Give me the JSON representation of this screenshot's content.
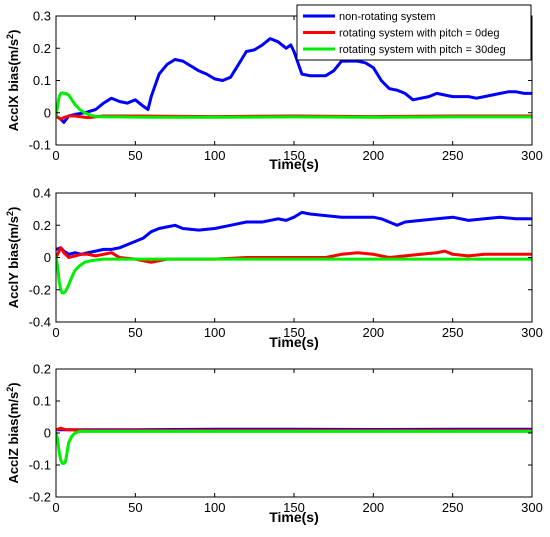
{
  "chart_data": [
    {
      "type": "line",
      "xlabel": "Time(s)",
      "ylabel_main": "AcclX bias(m/s",
      "ylabel_sup": "2",
      "ylabel_tail": ")",
      "xlim": [
        0,
        300
      ],
      "ylim": [
        -0.1,
        0.3
      ],
      "xticks": [
        0,
        50,
        100,
        150,
        200,
        250,
        300
      ],
      "yticks": [
        -0.1,
        0,
        0.1,
        0.2,
        0.3
      ],
      "ytick_labels": [
        "-0.1",
        "0",
        "0.1",
        "0.2",
        "0.3"
      ],
      "grid": false,
      "legend_position": "top-right",
      "series": [
        {
          "name": "non-rotating system",
          "color": "#0000ff",
          "x": [
            0,
            3,
            5,
            8,
            12,
            18,
            25,
            30,
            35,
            40,
            45,
            50,
            55,
            58,
            60,
            65,
            70,
            75,
            80,
            85,
            90,
            95,
            100,
            105,
            110,
            115,
            120,
            125,
            130,
            135,
            140,
            145,
            148,
            150,
            155,
            160,
            165,
            170,
            175,
            180,
            185,
            190,
            195,
            200,
            205,
            210,
            215,
            220,
            225,
            230,
            235,
            240,
            245,
            250,
            255,
            260,
            265,
            270,
            275,
            280,
            285,
            290,
            295,
            300
          ],
          "y": [
            -0.01,
            -0.02,
            -0.03,
            -0.01,
            -0.005,
            0.0,
            0.01,
            0.03,
            0.045,
            0.035,
            0.03,
            0.04,
            0.02,
            0.01,
            0.05,
            0.12,
            0.15,
            0.165,
            0.16,
            0.145,
            0.13,
            0.12,
            0.105,
            0.1,
            0.11,
            0.15,
            0.19,
            0.195,
            0.21,
            0.23,
            0.22,
            0.2,
            0.21,
            0.19,
            0.12,
            0.115,
            0.115,
            0.115,
            0.13,
            0.16,
            0.16,
            0.16,
            0.155,
            0.14,
            0.1,
            0.075,
            0.07,
            0.06,
            0.04,
            0.045,
            0.05,
            0.06,
            0.055,
            0.05,
            0.05,
            0.05,
            0.045,
            0.05,
            0.055,
            0.06,
            0.065,
            0.065,
            0.06,
            0.06
          ]
        },
        {
          "name": "rotating system with pitch = 0deg",
          "color": "#ff0000",
          "x": [
            0,
            3,
            5,
            8,
            12,
            20,
            30,
            50,
            100,
            150,
            200,
            250,
            300
          ],
          "y": [
            -0.01,
            -0.02,
            -0.015,
            -0.01,
            -0.01,
            -0.015,
            -0.01,
            -0.01,
            -0.012,
            -0.01,
            -0.012,
            -0.01,
            -0.01
          ]
        },
        {
          "name": "rotating system with pitch = 30deg",
          "color": "#00ee00",
          "x": [
            0,
            1,
            2,
            3,
            4,
            5,
            6,
            8,
            10,
            12,
            15,
            18,
            22,
            26,
            30,
            40,
            60,
            100,
            150,
            200,
            250,
            300
          ],
          "y": [
            -0.01,
            0.02,
            0.05,
            0.06,
            0.062,
            0.06,
            0.06,
            0.055,
            0.04,
            0.025,
            0.01,
            0.0,
            -0.008,
            -0.012,
            -0.013,
            -0.013,
            -0.014,
            -0.014,
            -0.013,
            -0.014,
            -0.013,
            -0.013
          ]
        }
      ]
    },
    {
      "type": "line",
      "xlabel": "Time(s)",
      "ylabel_main": "AcclY bias(m/s",
      "ylabel_sup": "2",
      "ylabel_tail": ")",
      "xlim": [
        0,
        300
      ],
      "ylim": [
        -0.4,
        0.4
      ],
      "xticks": [
        0,
        50,
        100,
        150,
        200,
        250,
        300
      ],
      "yticks": [
        -0.4,
        -0.2,
        0,
        0.2,
        0.4
      ],
      "ytick_labels": [
        "-0.4",
        "-0.2",
        "0",
        "0.2",
        "0.4"
      ],
      "grid": false,
      "series": [
        {
          "name": "",
          "color": "#0000ff",
          "x": [
            0,
            3,
            5,
            8,
            12,
            16,
            20,
            25,
            30,
            35,
            40,
            45,
            50,
            55,
            60,
            65,
            70,
            75,
            80,
            90,
            100,
            110,
            120,
            130,
            140,
            145,
            150,
            155,
            160,
            170,
            180,
            190,
            200,
            205,
            210,
            215,
            220,
            230,
            240,
            250,
            260,
            270,
            280,
            290,
            300
          ],
          "y": [
            0.05,
            0.06,
            0.04,
            0.02,
            0.03,
            0.02,
            0.03,
            0.04,
            0.05,
            0.05,
            0.06,
            0.08,
            0.1,
            0.12,
            0.16,
            0.18,
            0.19,
            0.2,
            0.18,
            0.17,
            0.18,
            0.2,
            0.22,
            0.22,
            0.24,
            0.23,
            0.25,
            0.28,
            0.27,
            0.26,
            0.25,
            0.25,
            0.25,
            0.24,
            0.22,
            0.2,
            0.22,
            0.23,
            0.24,
            0.25,
            0.23,
            0.24,
            0.25,
            0.24,
            0.24
          ]
        },
        {
          "name": "",
          "color": "#ff0000",
          "x": [
            0,
            3,
            5,
            8,
            12,
            16,
            20,
            25,
            30,
            35,
            40,
            50,
            60,
            70,
            80,
            100,
            120,
            140,
            150,
            160,
            170,
            180,
            190,
            200,
            210,
            220,
            230,
            240,
            245,
            250,
            260,
            270,
            280,
            290,
            300
          ],
          "y": [
            0.0,
            0.06,
            0.03,
            0.0,
            0.01,
            0.02,
            0.02,
            0.01,
            0.02,
            0.03,
            0.0,
            -0.01,
            -0.03,
            -0.01,
            -0.01,
            -0.01,
            0.0,
            0.0,
            0.0,
            0.0,
            0.0,
            0.02,
            0.03,
            0.02,
            0.0,
            0.01,
            0.02,
            0.03,
            0.04,
            0.02,
            0.01,
            0.02,
            0.02,
            0.02,
            0.02
          ]
        },
        {
          "name": "",
          "color": "#00ee00",
          "x": [
            0,
            1,
            2,
            3,
            4,
            5,
            6,
            8,
            10,
            12,
            15,
            18,
            22,
            26,
            30,
            40,
            60,
            100,
            150,
            200,
            250,
            300
          ],
          "y": [
            0.0,
            -0.05,
            -0.15,
            -0.2,
            -0.22,
            -0.22,
            -0.21,
            -0.17,
            -0.12,
            -0.08,
            -0.05,
            -0.03,
            -0.02,
            -0.015,
            -0.01,
            -0.01,
            -0.01,
            -0.01,
            -0.01,
            -0.01,
            -0.01,
            -0.01
          ]
        }
      ]
    },
    {
      "type": "line",
      "xlabel": "Time(s)",
      "ylabel_main": "AcclZ bias(m/s",
      "ylabel_sup": "2",
      "ylabel_tail": ")",
      "xlim": [
        0,
        300
      ],
      "ylim": [
        -0.2,
        0.2
      ],
      "xticks": [
        0,
        50,
        100,
        150,
        200,
        250,
        300
      ],
      "yticks": [
        -0.2,
        -0.1,
        0,
        0.1,
        0.2
      ],
      "ytick_labels": [
        "-0.2",
        "-0.1",
        "0",
        "0.1",
        "0.2"
      ],
      "grid": false,
      "series": [
        {
          "name": "",
          "color": "#0000ff",
          "x": [
            0,
            20,
            50,
            100,
            150,
            200,
            250,
            300
          ],
          "y": [
            0.01,
            0.01,
            0.01,
            0.012,
            0.012,
            0.011,
            0.012,
            0.012
          ]
        },
        {
          "name": "",
          "color": "#ff0000",
          "x": [
            0,
            3,
            6,
            10,
            20,
            50,
            100,
            150,
            200,
            250,
            300
          ],
          "y": [
            0.01,
            0.015,
            0.01,
            0.01,
            0.008,
            0.008,
            0.008,
            0.008,
            0.008,
            0.008,
            0.008
          ]
        },
        {
          "name": "",
          "color": "#00ee00",
          "x": [
            0,
            1,
            2,
            3,
            4,
            5,
            6,
            7,
            8,
            10,
            12,
            15,
            20,
            30,
            50,
            100,
            150,
            200,
            250,
            300
          ],
          "y": [
            0.0,
            -0.02,
            -0.06,
            -0.085,
            -0.095,
            -0.095,
            -0.09,
            -0.06,
            -0.03,
            -0.01,
            0.0,
            0.005,
            0.005,
            0.005,
            0.005,
            0.005,
            0.005,
            0.005,
            0.005,
            0.005
          ]
        }
      ]
    }
  ]
}
